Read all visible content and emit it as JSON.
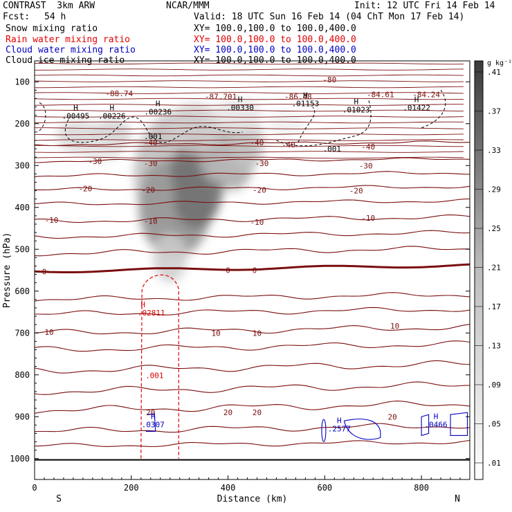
{
  "header": {
    "model": "CONTRAST  3km ARW",
    "org": "NCAR/MMM",
    "init": "Init: 12 UTC Fri 14 Feb 14",
    "fcst_label": "Fcst:",
    "fcst_value": "54 h",
    "valid": "Valid: 18 UTC Sun 16 Feb 14 (04 ChT Mon 17 Feb 14)"
  },
  "fields": [
    {
      "name": "Snow mixing ratio",
      "xy": "XY= 100.0,100.0 to 100.0,400.0",
      "color": "#000000"
    },
    {
      "name": "Rain water mixing ratio",
      "xy": "XY= 100.0,100.0 to 100.0,400.0",
      "color": "#e00000"
    },
    {
      "name": "Cloud water mixing ratio",
      "xy": "XY= 100.0,100.0 to 100.0,400.0",
      "color": "#0000c0"
    },
    {
      "name": "Cloud ice mixing ratio",
      "xy": "XY= 100.0,100.0 to 100.0,400.0",
      "color": "#000000"
    }
  ],
  "chart_data": {
    "type": "cross-section",
    "xlabel": "Distance (km)",
    "ylabel": "Pressure (hPa)",
    "xlim": [
      0,
      900
    ],
    "ylim": [
      50,
      1050
    ],
    "x_ticks": [
      "0",
      "200",
      "400",
      "600",
      "800"
    ],
    "y_ticks": [
      "100",
      "200",
      "300",
      "400",
      "500",
      "600",
      "700",
      "800",
      "900",
      "1000"
    ],
    "left_end": "S",
    "right_end": "N",
    "colorbar_unit": "g kg⁻¹",
    "colorbar_levels": [
      ".01",
      ".05",
      ".09",
      ".13",
      ".17",
      ".21",
      ".25",
      ".29",
      ".33",
      ".37",
      ".41"
    ],
    "temperature_labels": [
      {
        "text": "-88.74",
        "x": 175,
        "p": 128
      },
      {
        "text": "-87.701",
        "x": 385,
        "p": 135
      },
      {
        "text": "-86.48",
        "x": 545,
        "p": 135
      },
      {
        "text": "-84.61",
        "x": 715,
        "p": 130
      },
      {
        "text": "-84.24",
        "x": 810,
        "p": 130
      },
      {
        "text": "-80",
        "x": 610,
        "p": 95
      },
      {
        "text": "-40",
        "x": 240,
        "p": 245
      },
      {
        "text": "-40",
        "x": 460,
        "p": 245
      },
      {
        "text": "-40",
        "x": 525,
        "p": 250
      },
      {
        "text": "-40",
        "x": 690,
        "p": 255
      },
      {
        "text": "-30",
        "x": 125,
        "p": 290
      },
      {
        "text": "-30",
        "x": 240,
        "p": 295
      },
      {
        "text": "-30",
        "x": 470,
        "p": 295
      },
      {
        "text": "-30",
        "x": 685,
        "p": 300
      },
      {
        "text": "-20",
        "x": 105,
        "p": 355
      },
      {
        "text": "-20",
        "x": 235,
        "p": 358
      },
      {
        "text": "-20",
        "x": 465,
        "p": 358
      },
      {
        "text": "-20",
        "x": 665,
        "p": 360
      },
      {
        "text": "-10",
        "x": 35,
        "p": 430
      },
      {
        "text": "-10",
        "x": 240,
        "p": 433
      },
      {
        "text": "-10",
        "x": 460,
        "p": 435
      },
      {
        "text": "-10",
        "x": 690,
        "p": 425
      },
      {
        "text": "0",
        "x": 20,
        "p": 553
      },
      {
        "text": "0",
        "x": 400,
        "p": 550
      },
      {
        "text": "0",
        "x": 455,
        "p": 550
      },
      {
        "text": "10",
        "x": 30,
        "p": 698
      },
      {
        "text": "10",
        "x": 375,
        "p": 700
      },
      {
        "text": "10",
        "x": 460,
        "p": 700
      },
      {
        "text": "10",
        "x": 745,
        "p": 683
      },
      {
        "text": "20",
        "x": 240,
        "p": 890
      },
      {
        "text": "20",
        "x": 400,
        "p": 890
      },
      {
        "text": "20",
        "x": 460,
        "p": 890
      },
      {
        "text": "20",
        "x": 740,
        "p": 900
      }
    ],
    "snow_maxima": [
      {
        "label": "H",
        "value": ".00495",
        "x": 85,
        "p": 185
      },
      {
        "label": "H",
        "value": ".00226",
        "x": 160,
        "p": 185
      },
      {
        "label": "H",
        "value": ".00236",
        "x": 255,
        "p": 175
      },
      {
        "label": "H",
        "value": ".00330",
        "x": 425,
        "p": 165
      },
      {
        "label": "H",
        "value": ".01153",
        "x": 560,
        "p": 155
      },
      {
        "label": "H",
        "value": ".01023",
        "x": 665,
        "p": 170
      },
      {
        "label": "H",
        "value": ".01422",
        "x": 790,
        "p": 165
      }
    ],
    "ice_labels": [
      {
        "text": ".001",
        "x": 245,
        "p": 230
      },
      {
        "text": ".001",
        "x": 615,
        "p": 260
      }
    ],
    "rain": {
      "max_label": "H",
      "max_value": ".02811",
      "x": 230,
      "p": 665,
      "contour_label": ".001"
    },
    "cloud_water": [
      {
        "label": "H",
        "value": ".0307",
        "x": 245,
        "p": 915
      },
      {
        "label": "H",
        "value": ".2577",
        "x": 630,
        "p": 925
      },
      {
        "label": "H",
        "value": ".0466",
        "x": 830,
        "p": 915
      }
    ],
    "freezing_level_label": "0"
  }
}
